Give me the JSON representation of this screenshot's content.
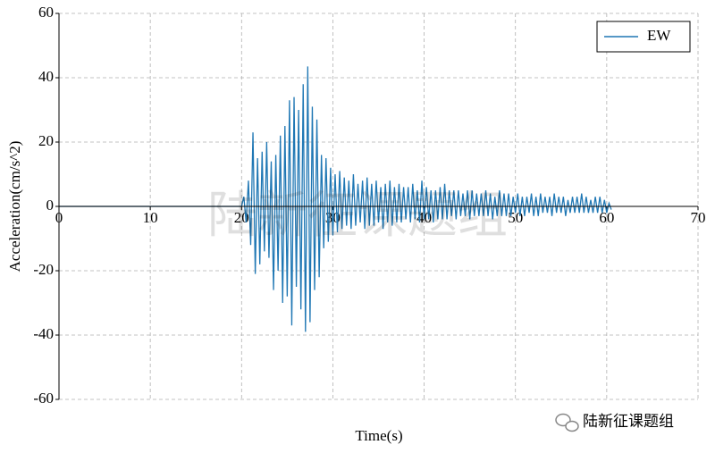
{
  "chart_data": {
    "type": "line",
    "xlabel": "Time(s)",
    "ylabel": "Acceleration(cm/s^2)",
    "watermark": "陆新征课题组",
    "footer": "陆新征课题组",
    "x": [
      0,
      20,
      20.25,
      20.5,
      20.75,
      21,
      21.25,
      21.5,
      21.75,
      22,
      22.25,
      22.5,
      22.75,
      23,
      23.25,
      23.5,
      23.75,
      24,
      24.25,
      24.5,
      24.75,
      25,
      25.25,
      25.5,
      25.75,
      26,
      26.25,
      26.5,
      26.75,
      27,
      27.25,
      27.5,
      27.75,
      28,
      28.25,
      28.5,
      28.75,
      29,
      29.25,
      29.5,
      29.75,
      30,
      30.25,
      30.5,
      30.75,
      31,
      31.25,
      31.5,
      31.75,
      32,
      32.25,
      32.5,
      32.75,
      33,
      33.25,
      33.5,
      33.75,
      34,
      34.25,
      34.5,
      34.75,
      35,
      35.25,
      35.5,
      35.75,
      36,
      36.25,
      36.5,
      36.75,
      37,
      37.25,
      37.5,
      37.75,
      38,
      38.25,
      38.5,
      38.75,
      39,
      39.25,
      39.5,
      39.75,
      40,
      40.25,
      40.5,
      40.75,
      41,
      41.25,
      41.5,
      41.75,
      42,
      42.25,
      42.5,
      42.75,
      43,
      43.25,
      43.5,
      43.75,
      44,
      44.25,
      44.5,
      44.75,
      45,
      45.25,
      45.5,
      45.75,
      46,
      46.25,
      46.5,
      46.75,
      47,
      47.25,
      47.5,
      47.75,
      48,
      48.25,
      48.5,
      48.75,
      49,
      49.25,
      49.5,
      49.75,
      50,
      50.25,
      50.5,
      50.75,
      51,
      51.25,
      51.5,
      51.75,
      52,
      52.25,
      52.5,
      52.75,
      53,
      53.25,
      53.5,
      53.75,
      54,
      54.25,
      54.5,
      54.75,
      55,
      55.25,
      55.5,
      55.75,
      56,
      56.25,
      56.5,
      56.75,
      57,
      57.25,
      57.5,
      57.75,
      58,
      58.25,
      58.5,
      58.75,
      59,
      59.25,
      59.5,
      59.75,
      60,
      60.25,
      60.5
    ],
    "series": [
      {
        "name": "EW",
        "color": "#1f77b4",
        "values": [
          0,
          0,
          3,
          -5,
          8,
          -12,
          23,
          -21,
          15,
          -18,
          17,
          -14,
          20,
          -16,
          14,
          -26,
          16,
          -20,
          22,
          -30,
          25,
          -28,
          33,
          -37,
          34,
          -25,
          30,
          -32,
          38,
          -39,
          43.5,
          -36,
          31,
          -26,
          27,
          -22,
          16,
          -13,
          15,
          -11,
          12,
          -9,
          10,
          -8,
          11,
          -7,
          9,
          -6,
          8,
          -7,
          10,
          -6,
          7,
          -5,
          8,
          -7,
          9,
          -6,
          7,
          -6,
          8,
          -5,
          6,
          -7,
          7,
          -5,
          8,
          -6,
          6,
          -5,
          7,
          -5,
          6,
          -4,
          6,
          -5,
          7,
          -4,
          5,
          -5,
          8,
          -4,
          6,
          -4,
          5,
          -5,
          5,
          -4,
          6,
          -4,
          7,
          -4,
          5,
          -3,
          5,
          -4,
          5,
          -3,
          4,
          -3,
          5,
          -4,
          5,
          -3,
          4,
          -3,
          4,
          -3,
          5,
          -3,
          4,
          -4,
          3,
          -3,
          5,
          -3,
          4,
          -3,
          4,
          -3,
          3,
          -2,
          4,
          -3,
          3,
          -3,
          3,
          -2,
          4,
          -3,
          3,
          -3,
          4,
          -2,
          3,
          -2,
          3,
          -3,
          4,
          -2,
          3,
          -2,
          3,
          -3,
          2,
          -2,
          3,
          -2,
          3,
          -2,
          4,
          -2,
          3,
          -2,
          2,
          -2,
          3,
          -2,
          3,
          -2,
          2,
          -2,
          1,
          -1
        ]
      }
    ],
    "xlim": [
      0,
      70
    ],
    "xticks": [
      0,
      10,
      20,
      30,
      40,
      50,
      60,
      70
    ],
    "ylim": [
      -60,
      60
    ],
    "yticks": [
      -60,
      -40,
      -20,
      0,
      20,
      40,
      60
    ],
    "grid": true,
    "legend": "upper right"
  }
}
